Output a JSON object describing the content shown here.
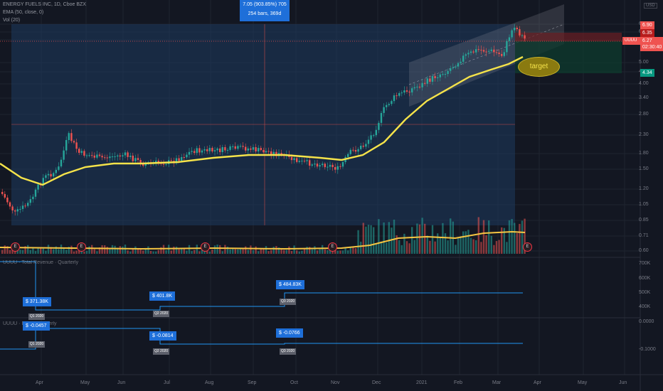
{
  "chart_header": {
    "title": "ENERGY FUELS INC, 1D, Cboe BZX",
    "ema": "EMA (50, close, 0)",
    "vol": "Vol (20)"
  },
  "measure_badge": {
    "line1": "7.05 (903.85%) 705",
    "line2": "254 bars, 369d"
  },
  "price_axis": {
    "labels": [
      "6.90",
      "6.35",
      "6.27",
      "5.00",
      "4.34",
      "4.00",
      "3.40",
      "2.80",
      "2.30",
      "1.80",
      "1.50",
      "1.20",
      "1.05",
      "0.85",
      "0.71",
      "0.60"
    ],
    "ticker_tag": "UUUU",
    "countdown": "02:30:40",
    "log_badge": "USD"
  },
  "tags": {
    "high": "6.90",
    "stop": "6.35",
    "current": "6.27",
    "target_price": "4.34"
  },
  "target_label": "target",
  "earnings_marker": "E",
  "time_axis": [
    "Apr",
    "May",
    "Jun",
    "Jul",
    "Aug",
    "Sep",
    "Oct",
    "Nov",
    "Dec",
    "2021",
    "Feb",
    "Mar",
    "Apr",
    "May",
    "Jun"
  ],
  "pane1": {
    "title": "UUUU · Total Revenue · Quarterly",
    "axis": [
      "700K",
      "600K",
      "500K",
      "400K"
    ],
    "values": [
      {
        "value": "$ 371.38K",
        "period": "Q1 2020"
      },
      {
        "value": "$ 401.8K",
        "period": "Q2 2020"
      },
      {
        "value": "$ 484.83K",
        "period": "Q3 2020"
      }
    ]
  },
  "pane2": {
    "title": "UUUU · EPS · Quarterly",
    "axis": [
      "0.0000",
      "-0.1000"
    ],
    "values": [
      {
        "value": "$ -0.0457",
        "period": "Q1 2020"
      },
      {
        "value": "$ -0.0814",
        "period": "Q2 2020"
      },
      {
        "value": "$ -0.0766",
        "period": "Q3 2020"
      }
    ]
  },
  "colors": {
    "background": "#131722",
    "up": "#26a69a",
    "down": "#ef5350",
    "ema": "#f5e34a",
    "measure_fill": "#1e3a5f",
    "accent": "#1e6fd9"
  }
}
